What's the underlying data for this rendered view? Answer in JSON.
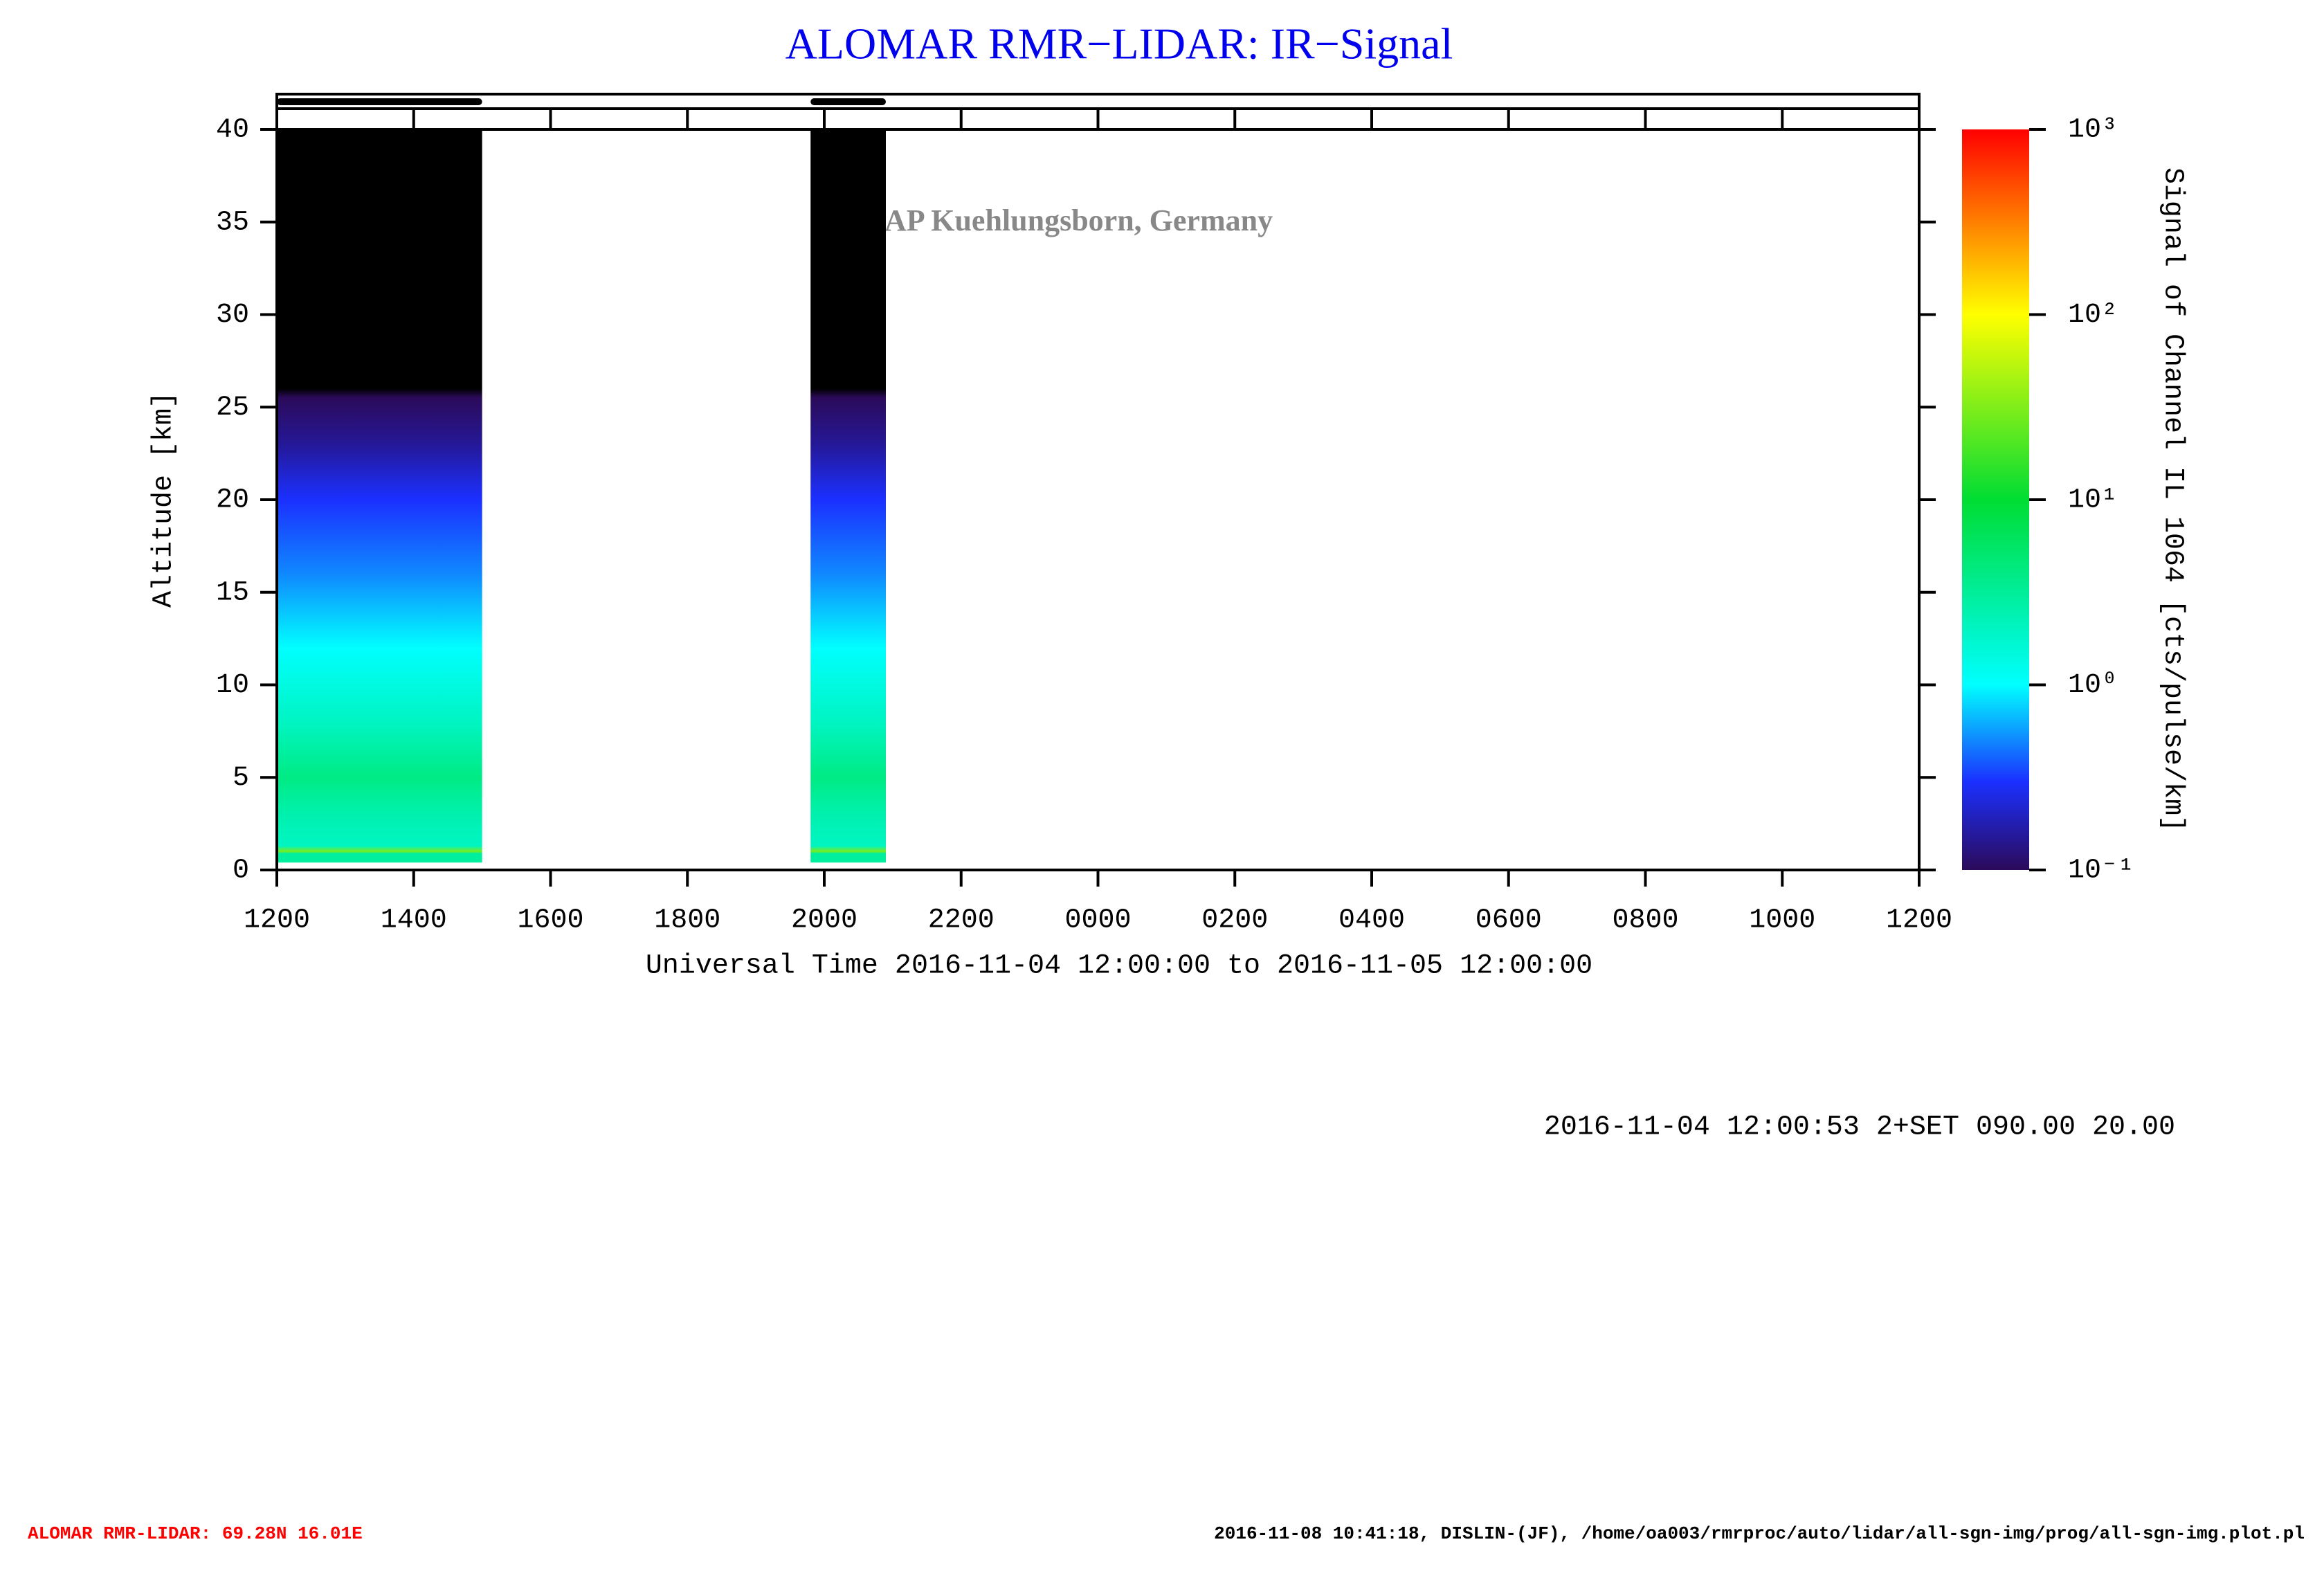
{
  "chart_data": {
    "type": "heatmap",
    "title": "ALOMAR RMR−LIDAR: IR−Signal",
    "x_label": "Universal Time 2016-11-04 12:00:00 to 2016-11-05 12:00:00",
    "y_label": "Altitude [km]",
    "colorbar_label": "Signal of Channel IL 1064 [cts/pulse/km]",
    "watermark": "©IAP Kuehlungsborn, Germany",
    "annotation": "2016-11-04 12:00:53 2+SET 090.00 20.00",
    "footer_left": "ALOMAR RMR-LIDAR: 69.28N 16.01E",
    "footer_right": "2016-11-08 10:41:18, DISLIN-(JF), /home/oa003/rmrproc/auto/lidar/all-sgn-img/prog/all-sgn-img.plot.pl",
    "xlim": [
      0,
      24
    ],
    "xticks": [
      {
        "value": 0,
        "label": "1200"
      },
      {
        "value": 2,
        "label": "1400"
      },
      {
        "value": 4,
        "label": "1600"
      },
      {
        "value": 6,
        "label": "1800"
      },
      {
        "value": 8,
        "label": "2000"
      },
      {
        "value": 10,
        "label": "2200"
      },
      {
        "value": 12,
        "label": "0000"
      },
      {
        "value": 14,
        "label": "0200"
      },
      {
        "value": 16,
        "label": "0400"
      },
      {
        "value": 18,
        "label": "0600"
      },
      {
        "value": 20,
        "label": "0800"
      },
      {
        "value": 22,
        "label": "1000"
      },
      {
        "value": 24,
        "label": "1200"
      }
    ],
    "ylim": [
      0,
      40
    ],
    "yticks": [
      0,
      5,
      10,
      15,
      20,
      25,
      30,
      35,
      40
    ],
    "intervals": [
      [
        0,
        3.0
      ],
      [
        7.8,
        8.9
      ]
    ],
    "profile": {
      "altitude": [
        0.4,
        0.9,
        1.0,
        1.3,
        3,
        5,
        8,
        12,
        16,
        20,
        23,
        25.5,
        26,
        40
      ],
      "signal": [
        3,
        3,
        30,
        2,
        2.5,
        4,
        2,
        1,
        0.5,
        0.3,
        0.15,
        0.1,
        0.05,
        0.05
      ]
    },
    "color_log_scale": true,
    "clim": [
      0.1,
      1000
    ],
    "cticks": [
      {
        "value": 0.1,
        "label": "10⁻¹"
      },
      {
        "value": 1,
        "label": "10⁰"
      },
      {
        "value": 10,
        "label": "10¹"
      },
      {
        "value": 100,
        "label": "10²"
      },
      {
        "value": 1000,
        "label": "10³"
      }
    ],
    "colorscale": [
      {
        "value": 0.1,
        "color": "#2b0a5a"
      },
      {
        "value": 0.3,
        "color": "#1b30ff"
      },
      {
        "value": 1,
        "color": "#00ffff"
      },
      {
        "value": 10,
        "color": "#00dd33"
      },
      {
        "value": 100,
        "color": "#ffff00"
      },
      {
        "value": 1000,
        "color": "#ff0000"
      }
    ],
    "under_color": "#000000"
  }
}
